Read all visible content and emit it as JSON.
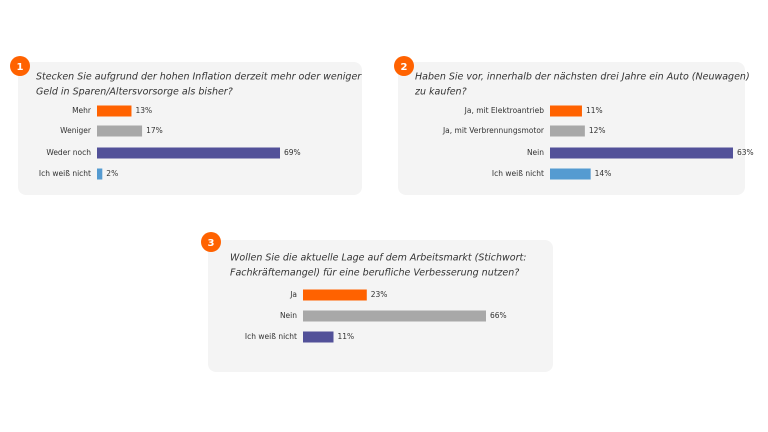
{
  "chart_data": [
    {
      "type": "bar",
      "badge": "1",
      "title_lines": [
        "Stecken Sie aufgrund der hohen Inflation derzeit mehr oder weniger",
        "Geld in Sparen/Altersvorsorge als bisher?"
      ],
      "categories": [
        "Mehr",
        "Weniger",
        "Weder noch",
        "Ich weiß nicht"
      ],
      "values": [
        13,
        17,
        69,
        2
      ],
      "value_labels": [
        "13%",
        "17%",
        "69%",
        "2%"
      ],
      "colors": [
        "#ff6200",
        "#a8a8a8",
        "#525199",
        "#559bd1"
      ]
    },
    {
      "type": "bar",
      "badge": "2",
      "title_lines": [
        "Haben Sie vor, innerhalb der nächsten drei Jahre ein Auto (Neuwagen)",
        "zu kaufen?"
      ],
      "categories": [
        "Ja, mit Elektroantrieb",
        "Ja, mit Verbrennungsmotor",
        "Nein",
        "Ich weiß nicht"
      ],
      "values": [
        11,
        12,
        63,
        14
      ],
      "value_labels": [
        "11%",
        "12%",
        "63%",
        "14%"
      ],
      "colors": [
        "#ff6200",
        "#a8a8a8",
        "#525199",
        "#559bd1"
      ]
    },
    {
      "type": "bar",
      "badge": "3",
      "title_lines": [
        "Wollen Sie die aktuelle Lage auf dem Arbeitsmarkt (Stichwort:",
        "Fachkräftemangel) für eine berufliche Verbesserung nutzen?"
      ],
      "categories": [
        "Ja",
        "Nein",
        "Ich weiß nicht"
      ],
      "values": [
        23,
        66,
        11
      ],
      "value_labels": [
        "23%",
        "66%",
        "11%"
      ],
      "colors": [
        "#ff6200",
        "#a8a8a8",
        "#525199"
      ]
    }
  ]
}
